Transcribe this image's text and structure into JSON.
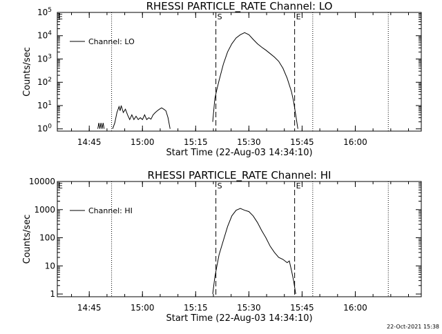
{
  "chart_data": [
    {
      "type": "line",
      "title": "RHESSI PARTICLE_RATE Channel: LO",
      "xlabel": "Start Time (22-Aug-03 14:34:10)",
      "ylabel": "Counts/sec",
      "yscale": "log",
      "ylim": [
        0.8,
        100000
      ],
      "xlim": [
        14.6,
        16.31
      ],
      "xticks": [
        {
          "x": 14.75,
          "label": "14:45"
        },
        {
          "x": 15.0,
          "label": "15:00"
        },
        {
          "x": 15.25,
          "label": "15:15"
        },
        {
          "x": 15.5,
          "label": "15:30"
        },
        {
          "x": 15.75,
          "label": "15:45"
        },
        {
          "x": 16.0,
          "label": "16:00"
        }
      ],
      "yticks": [
        {
          "value": 1,
          "label": "10^0"
        },
        {
          "value": 10,
          "label": "10^1"
        },
        {
          "value": 100,
          "label": "10^2"
        },
        {
          "value": 1000,
          "label": "10^3"
        },
        {
          "value": 10000,
          "label": "10^4"
        },
        {
          "value": 100000,
          "label": "10^5"
        }
      ],
      "dotted_lines": [
        14.6,
        14.855,
        15.8,
        16.155
      ],
      "dashed_lines": [
        {
          "x": 15.345,
          "label": "S"
        },
        {
          "x": 15.715,
          "label": "E"
        }
      ],
      "legend": {
        "label": "Channel: LO",
        "position": "top-left"
      },
      "series": [
        {
          "name": "Channel: LO",
          "segments": [
            [
              [
                14.79,
                1
              ],
              [
                14.795,
                1.8
              ],
              [
                14.8,
                1
              ],
              [
                14.805,
                1.8
              ],
              [
                14.81,
                1
              ],
              [
                14.815,
                1.8
              ],
              [
                14.82,
                1
              ]
            ],
            [
              [
                14.86,
                1
              ],
              [
                14.87,
                1.8
              ],
              [
                14.88,
                5
              ],
              [
                14.89,
                9
              ],
              [
                14.895,
                6
              ],
              [
                14.9,
                10
              ],
              [
                14.91,
                5
              ],
              [
                14.92,
                7
              ],
              [
                14.93,
                4
              ],
              [
                14.94,
                2.5
              ],
              [
                14.95,
                4
              ],
              [
                14.96,
                2.5
              ],
              [
                14.97,
                3.5
              ],
              [
                14.98,
                2.5
              ],
              [
                14.99,
                3
              ],
              [
                15.0,
                2.5
              ],
              [
                15.01,
                4
              ],
              [
                15.02,
                2.5
              ],
              [
                15.03,
                3
              ],
              [
                15.04,
                2.6
              ],
              [
                15.05,
                4
              ],
              [
                15.06,
                5
              ],
              [
                15.07,
                6
              ],
              [
                15.08,
                7
              ],
              [
                15.09,
                8
              ],
              [
                15.1,
                7
              ],
              [
                15.11,
                6
              ],
              [
                15.12,
                3
              ],
              [
                15.13,
                1
              ]
            ],
            [
              [
                15.33,
                2
              ],
              [
                15.34,
                20
              ],
              [
                15.35,
                50
              ],
              [
                15.36,
                120
              ],
              [
                15.38,
                600
              ],
              [
                15.4,
                2000
              ],
              [
                15.42,
                4500
              ],
              [
                15.44,
                8000
              ],
              [
                15.46,
                11000
              ],
              [
                15.48,
                13500
              ],
              [
                15.5,
                11000
              ],
              [
                15.52,
                7000
              ],
              [
                15.54,
                4500
              ],
              [
                15.56,
                3200
              ],
              [
                15.58,
                2400
              ],
              [
                15.6,
                1700
              ],
              [
                15.62,
                1200
              ],
              [
                15.64,
                800
              ],
              [
                15.66,
                400
              ],
              [
                15.68,
                150
              ],
              [
                15.7,
                40
              ],
              [
                15.71,
                15
              ],
              [
                15.72,
                4
              ],
              [
                15.73,
                1
              ]
            ]
          ]
        }
      ]
    },
    {
      "type": "line",
      "title": "RHESSI PARTICLE_RATE Channel: HI",
      "xlabel": "Start Time (22-Aug-03 14:34:10)",
      "ylabel": "Counts/sec",
      "yscale": "log",
      "ylim": [
        0.8,
        10000
      ],
      "xlim": [
        14.6,
        16.31
      ],
      "xticks": [
        {
          "x": 14.75,
          "label": "14:45"
        },
        {
          "x": 15.0,
          "label": "15:00"
        },
        {
          "x": 15.25,
          "label": "15:15"
        },
        {
          "x": 15.5,
          "label": "15:30"
        },
        {
          "x": 15.75,
          "label": "15:45"
        },
        {
          "x": 16.0,
          "label": "16:00"
        }
      ],
      "yticks": [
        {
          "value": 1,
          "label": "1"
        },
        {
          "value": 10,
          "label": "10"
        },
        {
          "value": 100,
          "label": "100"
        },
        {
          "value": 1000,
          "label": "1000"
        },
        {
          "value": 10000,
          "label": "10000"
        }
      ],
      "dotted_lines": [
        14.6,
        14.855,
        15.8,
        16.155
      ],
      "dashed_lines": [
        {
          "x": 15.345,
          "label": "S"
        },
        {
          "x": 15.715,
          "label": "E"
        }
      ],
      "legend": {
        "label": "Channel: HI",
        "position": "top-left"
      },
      "series": [
        {
          "name": "Channel: HI",
          "segments": [
            [
              [
                15.33,
                1
              ],
              [
                15.34,
                4
              ],
              [
                15.35,
                10
              ],
              [
                15.36,
                25
              ],
              [
                15.38,
                80
              ],
              [
                15.4,
                250
              ],
              [
                15.42,
                600
              ],
              [
                15.44,
                950
              ],
              [
                15.46,
                1100
              ],
              [
                15.48,
                950
              ],
              [
                15.5,
                850
              ],
              [
                15.52,
                600
              ],
              [
                15.54,
                350
              ],
              [
                15.56,
                180
              ],
              [
                15.58,
                100
              ],
              [
                15.6,
                50
              ],
              [
                15.62,
                30
              ],
              [
                15.64,
                20
              ],
              [
                15.66,
                17
              ],
              [
                15.68,
                13
              ],
              [
                15.69,
                15
              ],
              [
                15.7,
                7
              ],
              [
                15.71,
                3
              ],
              [
                15.72,
                1
              ]
            ]
          ]
        }
      ]
    }
  ],
  "footer": {
    "timestamp": "22-Oct-2021 15:38"
  }
}
